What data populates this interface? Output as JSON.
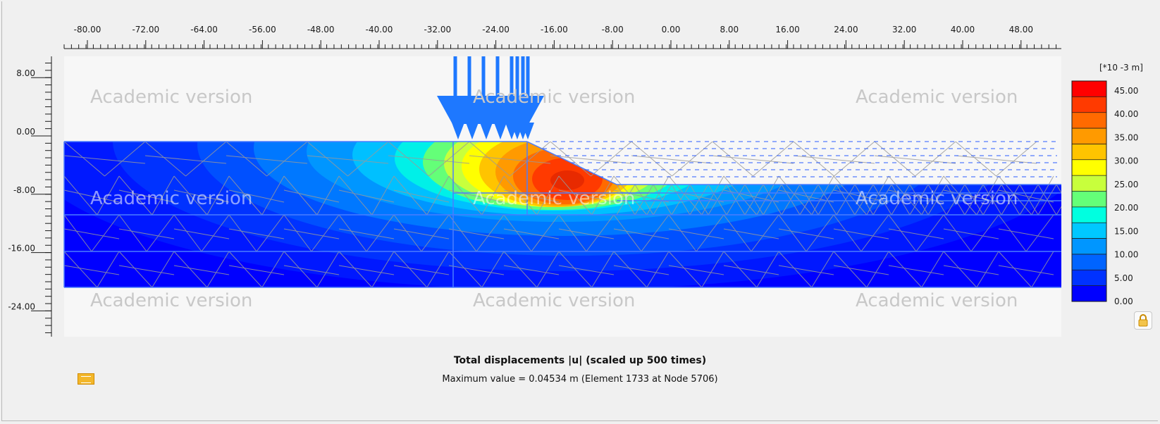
{
  "axes": {
    "x_ticks": [
      "-80.00",
      "-72.00",
      "-64.00",
      "-56.00",
      "-48.00",
      "-40.00",
      "-32.00",
      "-24.00",
      "-16.00",
      "-8.00",
      "0.00",
      "8.00",
      "16.00",
      "24.00",
      "32.00",
      "40.00",
      "48.00"
    ],
    "y_ticks": [
      "8.00",
      "0.00",
      "-8.00",
      "-16.00",
      "-24.00"
    ]
  },
  "watermark": "Academic version",
  "legend": {
    "unit": "[*10 -3 m]",
    "values": [
      "45.00",
      "40.00",
      "35.00",
      "30.00",
      "25.00",
      "20.00",
      "15.00",
      "10.00",
      "5.00",
      "0.00"
    ],
    "colors": [
      "#ff0000",
      "#ff3a00",
      "#ff6a00",
      "#ff9a00",
      "#ffc400",
      "#ffff00",
      "#c8ff3c",
      "#64ff78",
      "#00ffe0",
      "#00c8ff",
      "#0096ff",
      "#0064ff",
      "#0032ff",
      "#0000ff"
    ]
  },
  "caption": {
    "title": "Total displacements |u| (scaled up 500 times)",
    "max_value": "Maximum value = 0.04534 m (Element 1733 at Node 5706)"
  },
  "colors": {
    "background": "#f0f0f0",
    "plot_background": "#f7f7f7",
    "load_arrows": "#1e78ff",
    "mesh_lines": "#9a9a9a"
  }
}
